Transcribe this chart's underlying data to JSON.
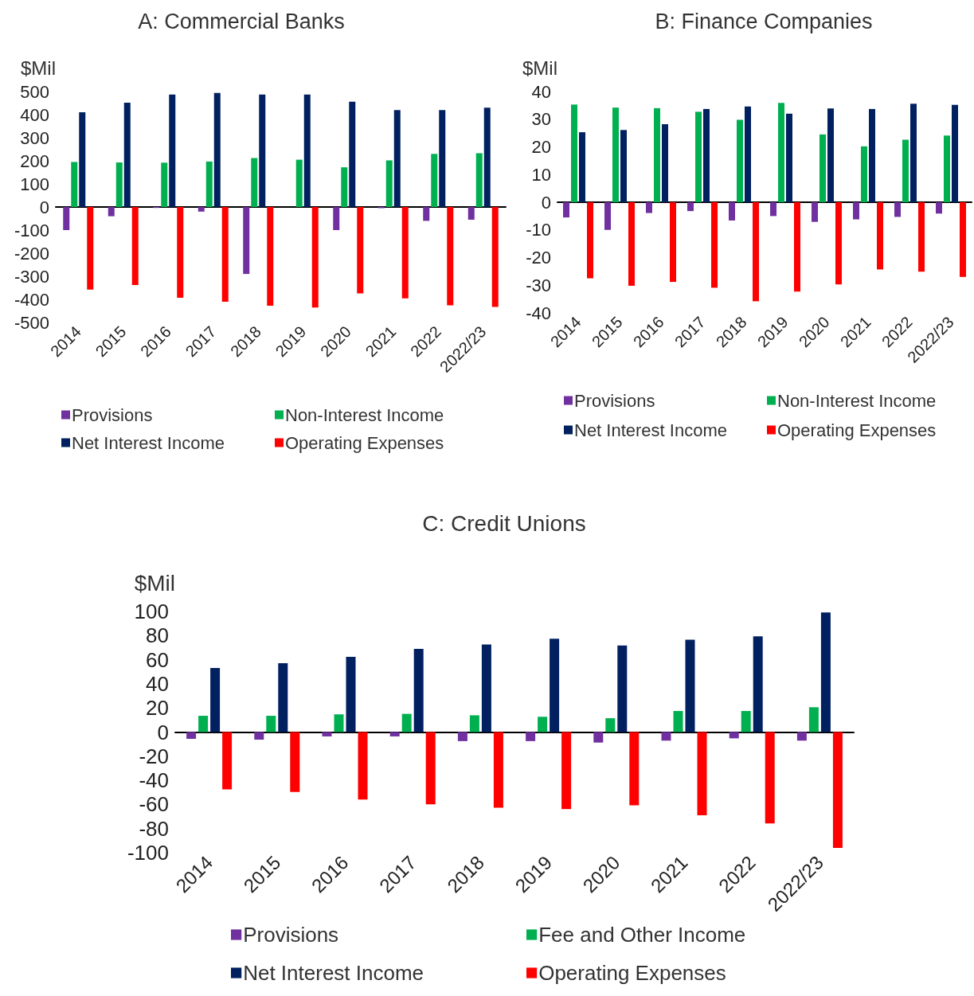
{
  "chart_data": [
    {
      "type": "bar",
      "title": "A: Commercial Banks",
      "ylabel": "$Mil",
      "categories": [
        "2014",
        "2015",
        "2016",
        "2017",
        "2018",
        "2019",
        "2020",
        "2021",
        "2022",
        "2022/23"
      ],
      "series": [
        {
          "name": "Provisions",
          "color": "#7030a0",
          "values": [
            -100,
            -40,
            -4,
            -20,
            -290,
            0,
            -100,
            -5,
            -60,
            -55
          ]
        },
        {
          "name": "Non-Interest Income",
          "color": "#00b050",
          "values": [
            195,
            193,
            192,
            197,
            212,
            205,
            172,
            202,
            230,
            233
          ]
        },
        {
          "name": "Net Interest Income",
          "color": "#002060",
          "values": [
            410,
            452,
            487,
            494,
            487,
            487,
            456,
            420,
            420,
            430
          ]
        },
        {
          "name": "Operating Expenses",
          "color": "#ff0000",
          "values": [
            -358,
            -338,
            -393,
            -410,
            -428,
            -435,
            -374,
            -396,
            -426,
            -433
          ]
        }
      ],
      "ylim": [
        -500,
        500
      ],
      "yticks": [
        -500,
        -400,
        -300,
        -200,
        -100,
        0,
        100,
        200,
        300,
        400,
        500
      ],
      "legend": "bottom"
    },
    {
      "type": "bar",
      "title": "B: Finance Companies",
      "ylabel": "$Mil",
      "categories": [
        "2014",
        "2015",
        "2016",
        "2017",
        "2018",
        "2019",
        "2020",
        "2021",
        "2022",
        "2022/23"
      ],
      "series": [
        {
          "name": "Provisions",
          "color": "#7030a0",
          "values": [
            -5.5,
            -10,
            -3.9,
            -3.2,
            -6.6,
            -5,
            -7.1,
            -6.2,
            -5.3,
            -4.1
          ]
        },
        {
          "name": "Non-Interest Income",
          "color": "#00b050",
          "values": [
            35.3,
            34.2,
            34,
            32.7,
            29.8,
            35.9,
            24.5,
            20.2,
            22.6,
            24.1
          ]
        },
        {
          "name": "Net Interest Income",
          "color": "#002060",
          "values": [
            25.3,
            26.1,
            28.2,
            33.7,
            34.6,
            32,
            33.9,
            33.7,
            35.6,
            35.2
          ]
        },
        {
          "name": "Operating Expenses",
          "color": "#ff0000",
          "values": [
            -27.5,
            -30.2,
            -28.8,
            -30.9,
            -35.8,
            -32.3,
            -29.7,
            -24.3,
            -25.1,
            -27
          ]
        }
      ],
      "ylim": [
        -40,
        40
      ],
      "yticks": [
        -40,
        -30,
        -20,
        -10,
        0,
        10,
        20,
        30,
        40
      ],
      "legend": "bottom"
    },
    {
      "type": "bar",
      "title": "C: Credit Unions",
      "ylabel": "$Mil",
      "categories": [
        "2014",
        "2015",
        "2016",
        "2017",
        "2018",
        "2019",
        "2020",
        "2021",
        "2022",
        "2022/23"
      ],
      "series": [
        {
          "name": "Provisions",
          "color": "#7030a0",
          "values": [
            -5.6,
            -6.3,
            -3.6,
            -3.6,
            -7.5,
            -7.5,
            -8.7,
            -7.1,
            -5.2,
            -7.1
          ]
        },
        {
          "name": "Fee and Other Income",
          "color": "#00b050",
          "values": [
            13.5,
            13.5,
            14.7,
            15.1,
            13.9,
            12.7,
            11.5,
            17.5,
            17.5,
            20.6
          ]
        },
        {
          "name": "Net Interest Income",
          "color": "#002060",
          "values": [
            53.2,
            57.1,
            62.3,
            69,
            72.6,
            77.4,
            71.8,
            76.6,
            79.4,
            99.2
          ]
        },
        {
          "name": "Operating Expenses",
          "color": "#ff0000",
          "values": [
            -47.6,
            -49.6,
            -56,
            -59.9,
            -62.7,
            -63.9,
            -60.7,
            -69,
            -75.8,
            -96
          ]
        }
      ],
      "ylim": [
        -100,
        100
      ],
      "yticks": [
        -100,
        -80,
        -60,
        -40,
        -20,
        0,
        20,
        40,
        60,
        80,
        100
      ],
      "legend": "bottom"
    }
  ]
}
